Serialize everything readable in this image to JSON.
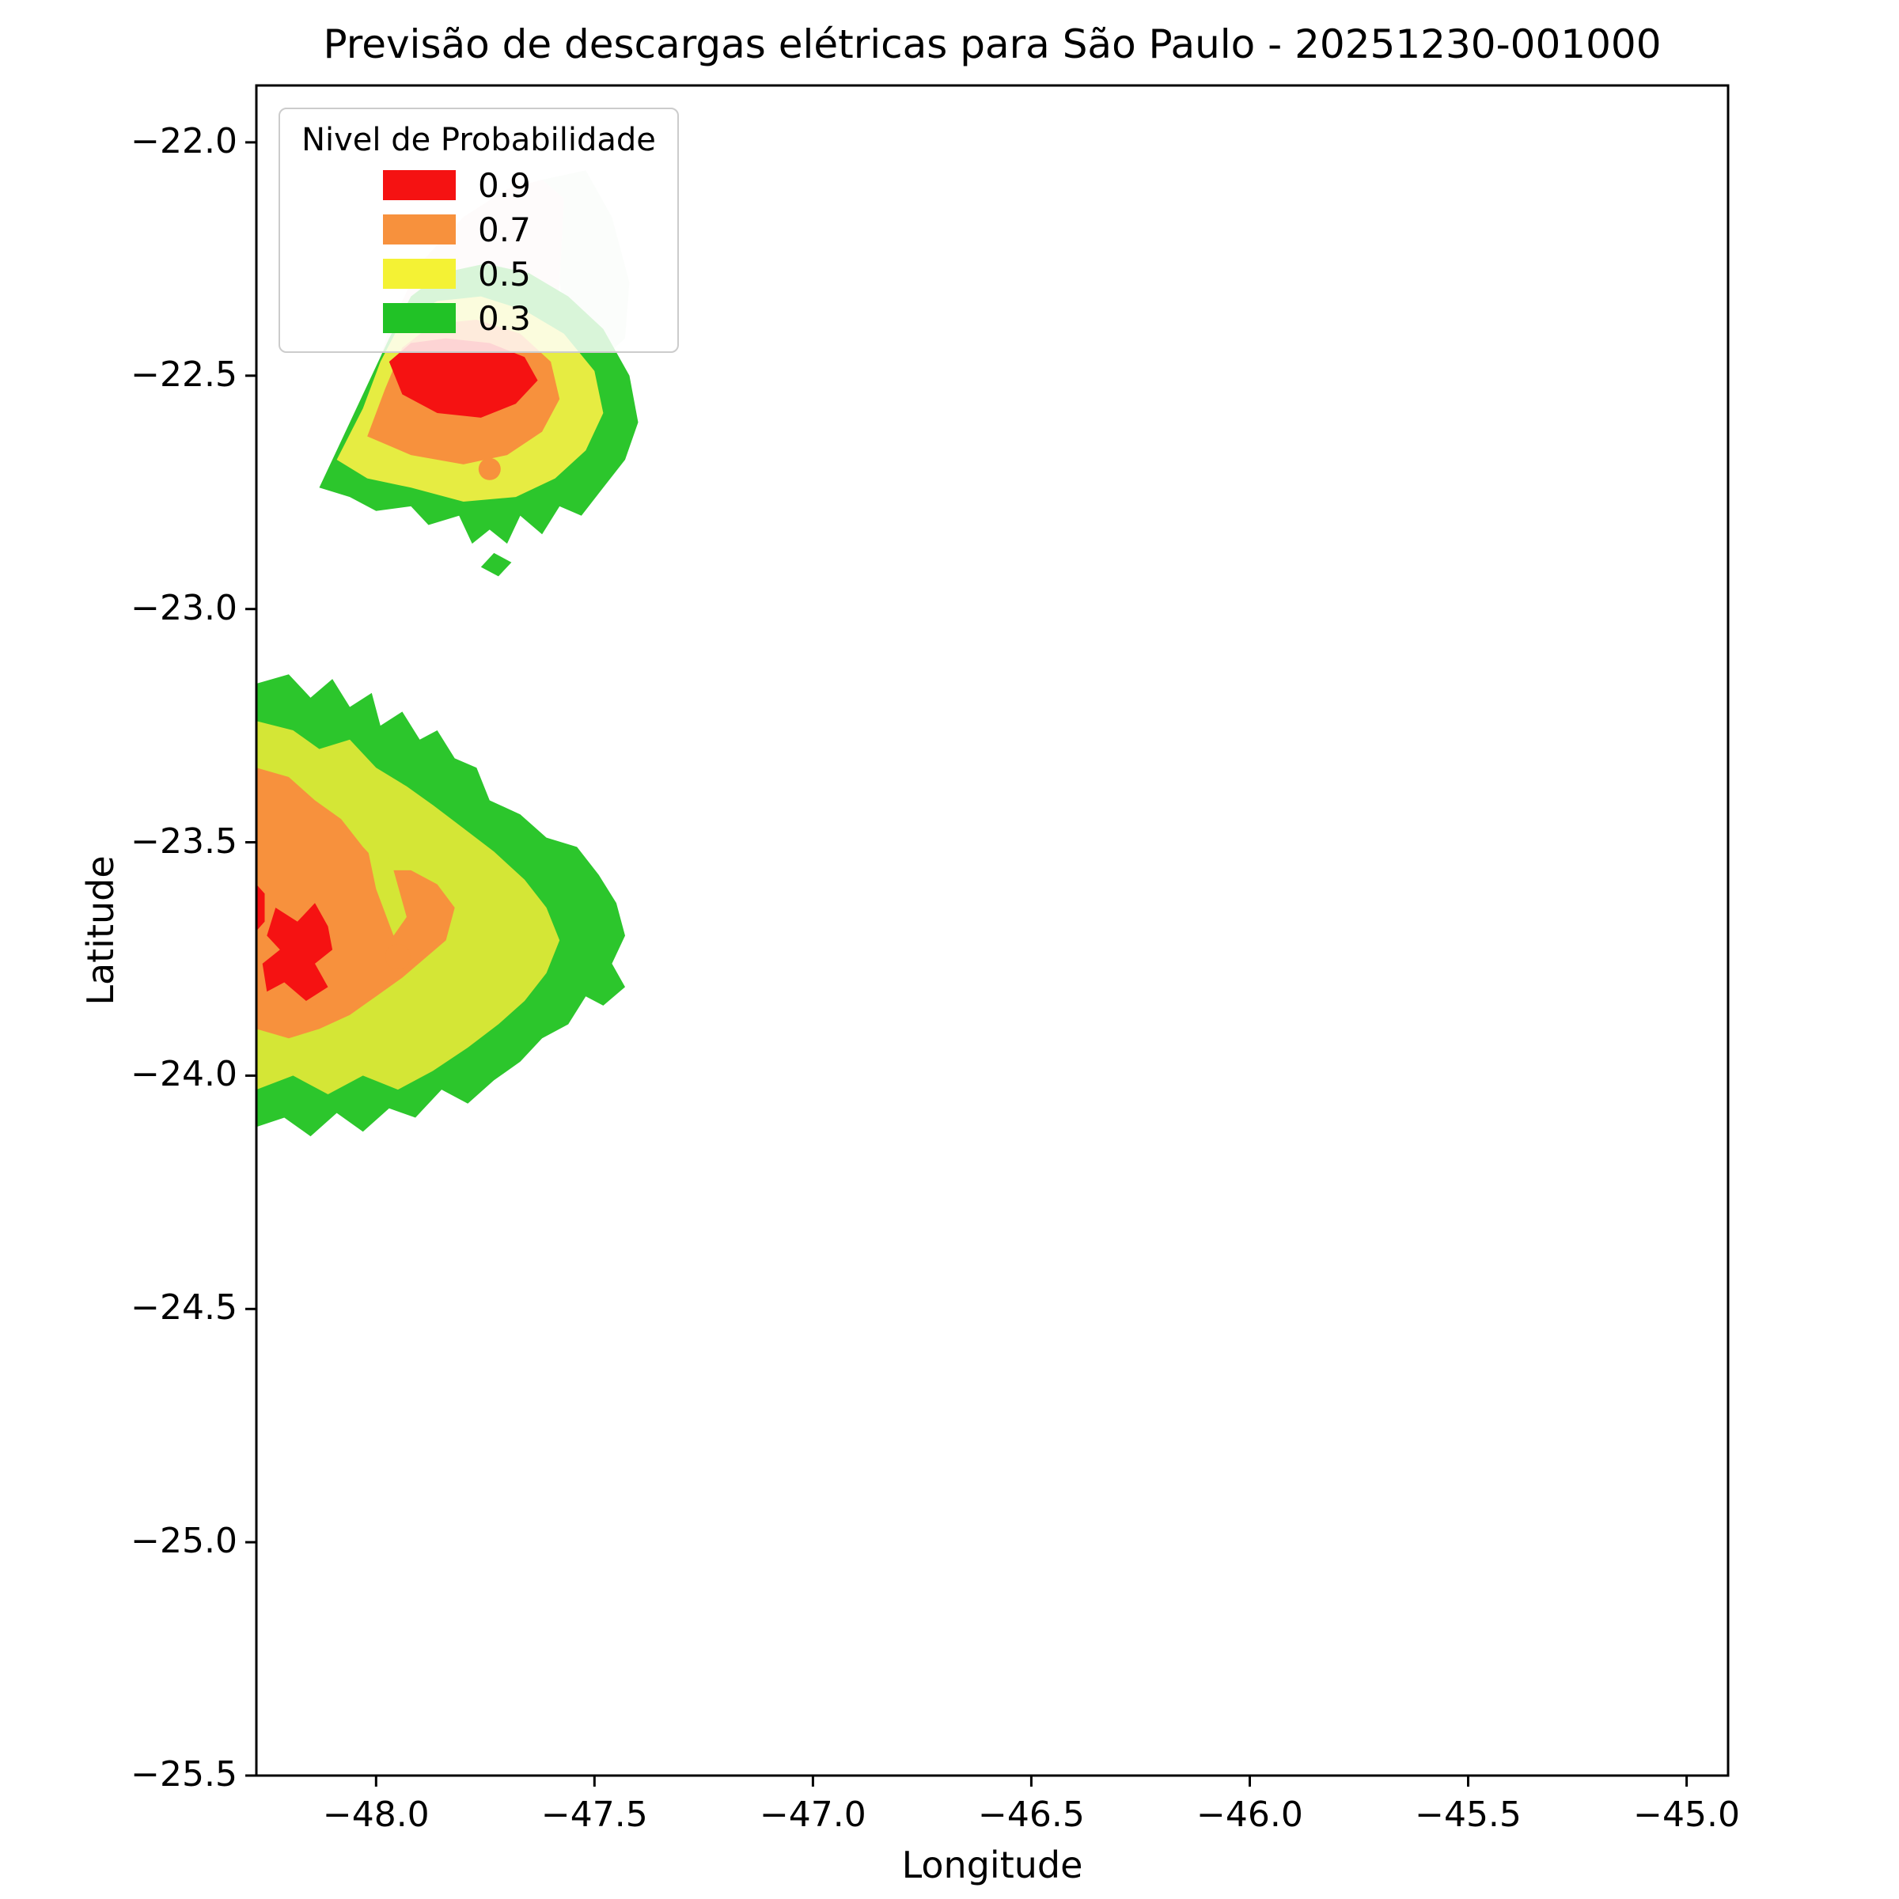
{
  "figure": {
    "background": "#ffffff"
  },
  "chart_data": {
    "type": "heatmap",
    "subtype": "filled-contour probability map",
    "title": "Previsão de descargas elétricas para São Paulo - 20251230-001000",
    "xlabel": "Longitude",
    "ylabel": "Latitude",
    "xlim": [
      -48.274,
      -44.905
    ],
    "ylim": [
      -25.5,
      -21.878
    ],
    "xticks": [
      -48.0,
      -47.5,
      -47.0,
      -46.5,
      -46.0,
      -45.5,
      -45.0
    ],
    "xtick_labels": [
      "−48.0",
      "−47.5",
      "−47.0",
      "−46.5",
      "−46.0",
      "−45.5",
      "−45.0"
    ],
    "yticks": [
      -22.0,
      -22.5,
      -23.0,
      -23.5,
      -24.0,
      -24.5,
      -25.0,
      -25.5
    ],
    "ytick_labels": [
      "−22.0",
      "−22.5",
      "−23.0",
      "−23.5",
      "−24.0",
      "−24.5",
      "−25.0",
      "−25.5"
    ],
    "grid": false,
    "levels": [
      0.3,
      0.5,
      0.7,
      0.9
    ],
    "legend": {
      "title": "Nivel de Probabilidade",
      "position": "upper left",
      "entries": [
        {
          "label": "0.9",
          "color": "#f51212"
        },
        {
          "label": "0.7",
          "color": "#f7913d"
        },
        {
          "label": "0.5",
          "color": "#f4f234"
        },
        {
          "label": "0.3",
          "color": "#21c226"
        }
      ]
    },
    "regions": [
      {
        "id": "north-halo-pink",
        "level": 0.1,
        "color": "#f7d9d4",
        "opacity": 0.6,
        "points": [
          [
            -48.03,
            -22.58
          ],
          [
            -47.97,
            -22.4
          ],
          [
            -47.9,
            -22.26
          ],
          [
            -47.8,
            -22.16
          ],
          [
            -47.7,
            -22.1
          ],
          [
            -47.62,
            -22.08
          ],
          [
            -47.57,
            -22.12
          ],
          [
            -47.58,
            -22.3
          ],
          [
            -47.6,
            -22.45
          ],
          [
            -47.64,
            -22.55
          ],
          [
            -47.8,
            -22.6
          ],
          [
            -47.95,
            -22.6
          ]
        ]
      },
      {
        "id": "north-halo-mint",
        "level": 0.1,
        "color": "#dcefda",
        "opacity": 0.6,
        "points": [
          [
            -47.62,
            -22.08
          ],
          [
            -47.52,
            -22.06
          ],
          [
            -47.46,
            -22.16
          ],
          [
            -47.42,
            -22.3
          ],
          [
            -47.43,
            -22.42
          ],
          [
            -47.5,
            -22.48
          ],
          [
            -47.56,
            -22.42
          ],
          [
            -47.58,
            -22.3
          ],
          [
            -47.57,
            -22.12
          ]
        ]
      },
      {
        "id": "north-green-0.3",
        "level": 0.3,
        "color": "#2cc62c",
        "opacity": 1,
        "points": [
          [
            -48.13,
            -22.74
          ],
          [
            -48.08,
            -22.64
          ],
          [
            -48.02,
            -22.52
          ],
          [
            -47.97,
            -22.42
          ],
          [
            -47.92,
            -22.33
          ],
          [
            -47.85,
            -22.28
          ],
          [
            -47.75,
            -22.26
          ],
          [
            -47.65,
            -22.28
          ],
          [
            -47.56,
            -22.33
          ],
          [
            -47.48,
            -22.4
          ],
          [
            -47.42,
            -22.5
          ],
          [
            -47.4,
            -22.6
          ],
          [
            -47.43,
            -22.68
          ],
          [
            -47.48,
            -22.74
          ],
          [
            -47.53,
            -22.8
          ],
          [
            -47.58,
            -22.78
          ],
          [
            -47.62,
            -22.84
          ],
          [
            -47.67,
            -22.8
          ],
          [
            -47.7,
            -22.86
          ],
          [
            -47.74,
            -22.83
          ],
          [
            -47.78,
            -22.86
          ],
          [
            -47.81,
            -22.8
          ],
          [
            -47.88,
            -22.82
          ],
          [
            -47.92,
            -22.78
          ],
          [
            -48.0,
            -22.79
          ],
          [
            -48.06,
            -22.76
          ]
        ]
      },
      {
        "id": "north-green-island",
        "level": 0.3,
        "color": "#2cc62c",
        "opacity": 1,
        "points": [
          [
            -47.73,
            -22.88
          ],
          [
            -47.69,
            -22.9
          ],
          [
            -47.72,
            -22.93
          ],
          [
            -47.76,
            -22.91
          ]
        ]
      },
      {
        "id": "north-yellow-0.5",
        "level": 0.5,
        "color": "#e6ec42",
        "opacity": 1,
        "points": [
          [
            -48.09,
            -22.68
          ],
          [
            -48.03,
            -22.57
          ],
          [
            -47.99,
            -22.47
          ],
          [
            -47.94,
            -22.38
          ],
          [
            -47.86,
            -22.34
          ],
          [
            -47.76,
            -22.33
          ],
          [
            -47.66,
            -22.36
          ],
          [
            -47.57,
            -22.41
          ],
          [
            -47.5,
            -22.49
          ],
          [
            -47.48,
            -22.58
          ],
          [
            -47.52,
            -22.66
          ],
          [
            -47.59,
            -22.72
          ],
          [
            -47.68,
            -22.76
          ],
          [
            -47.8,
            -22.77
          ],
          [
            -47.92,
            -22.74
          ],
          [
            -48.02,
            -22.72
          ]
        ]
      },
      {
        "id": "north-orange-0.7",
        "level": 0.7,
        "color": "#f7913d",
        "opacity": 1,
        "points": [
          [
            -48.02,
            -22.63
          ],
          [
            -47.98,
            -22.53
          ],
          [
            -47.94,
            -22.44
          ],
          [
            -47.87,
            -22.39
          ],
          [
            -47.77,
            -22.38
          ],
          [
            -47.67,
            -22.41
          ],
          [
            -47.6,
            -22.47
          ],
          [
            -47.58,
            -22.55
          ],
          [
            -47.62,
            -22.62
          ],
          [
            -47.7,
            -22.67
          ],
          [
            -47.8,
            -22.69
          ],
          [
            -47.92,
            -22.67
          ]
        ]
      },
      {
        "id": "north-red-0.9",
        "level": 0.9,
        "color": "#f51212",
        "opacity": 1,
        "points": [
          [
            -47.97,
            -22.47
          ],
          [
            -47.92,
            -22.43
          ],
          [
            -47.84,
            -22.42
          ],
          [
            -47.74,
            -22.43
          ],
          [
            -47.66,
            -22.46
          ],
          [
            -47.63,
            -22.51
          ],
          [
            -47.68,
            -22.56
          ],
          [
            -47.76,
            -22.59
          ],
          [
            -47.86,
            -22.58
          ],
          [
            -47.94,
            -22.54
          ]
        ]
      },
      {
        "id": "south-green-0.3",
        "level": 0.3,
        "color": "#2cc62c",
        "opacity": 1,
        "points": [
          [
            -48.274,
            -23.16
          ],
          [
            -48.2,
            -23.14
          ],
          [
            -48.15,
            -23.19
          ],
          [
            -48.1,
            -23.15
          ],
          [
            -48.06,
            -23.21
          ],
          [
            -48.01,
            -23.18
          ],
          [
            -47.99,
            -23.25
          ],
          [
            -47.94,
            -23.22
          ],
          [
            -47.9,
            -23.28
          ],
          [
            -47.86,
            -23.26
          ],
          [
            -47.82,
            -23.32
          ],
          [
            -47.77,
            -23.34
          ],
          [
            -47.74,
            -23.41
          ],
          [
            -47.67,
            -23.44
          ],
          [
            -47.61,
            -23.49
          ],
          [
            -47.54,
            -23.51
          ],
          [
            -47.49,
            -23.57
          ],
          [
            -47.45,
            -23.63
          ],
          [
            -47.43,
            -23.7
          ],
          [
            -47.46,
            -23.76
          ],
          [
            -47.43,
            -23.81
          ],
          [
            -47.48,
            -23.85
          ],
          [
            -47.52,
            -23.83
          ],
          [
            -47.56,
            -23.89
          ],
          [
            -47.62,
            -23.92
          ],
          [
            -47.67,
            -23.97
          ],
          [
            -47.73,
            -24.01
          ],
          [
            -47.79,
            -24.06
          ],
          [
            -47.85,
            -24.03
          ],
          [
            -47.91,
            -24.09
          ],
          [
            -47.97,
            -24.07
          ],
          [
            -48.03,
            -24.12
          ],
          [
            -48.09,
            -24.08
          ],
          [
            -48.15,
            -24.13
          ],
          [
            -48.21,
            -24.09
          ],
          [
            -48.274,
            -24.11
          ]
        ]
      },
      {
        "id": "south-yellowgreen-0.5",
        "level": 0.5,
        "color": "#d4e636",
        "opacity": 1,
        "points": [
          [
            -48.274,
            -23.24
          ],
          [
            -48.19,
            -23.26
          ],
          [
            -48.13,
            -23.3
          ],
          [
            -48.06,
            -23.28
          ],
          [
            -48.0,
            -23.34
          ],
          [
            -47.93,
            -23.38
          ],
          [
            -47.87,
            -23.42
          ],
          [
            -47.8,
            -23.47
          ],
          [
            -47.73,
            -23.52
          ],
          [
            -47.66,
            -23.58
          ],
          [
            -47.61,
            -23.64
          ],
          [
            -47.58,
            -23.71
          ],
          [
            -47.61,
            -23.78
          ],
          [
            -47.66,
            -23.84
          ],
          [
            -47.72,
            -23.89
          ],
          [
            -47.79,
            -23.94
          ],
          [
            -47.87,
            -23.99
          ],
          [
            -47.95,
            -24.03
          ],
          [
            -48.03,
            -24.0
          ],
          [
            -48.11,
            -24.04
          ],
          [
            -48.19,
            -24.0
          ],
          [
            -48.274,
            -24.03
          ]
        ]
      },
      {
        "id": "south-orange-0.7",
        "level": 0.7,
        "color": "#f7913d",
        "opacity": 1,
        "points": [
          [
            -48.274,
            -23.34
          ],
          [
            -48.2,
            -23.36
          ],
          [
            -48.14,
            -23.41
          ],
          [
            -48.08,
            -23.45
          ],
          [
            -48.03,
            -23.51
          ],
          [
            -47.98,
            -23.56
          ],
          [
            -47.92,
            -23.56
          ],
          [
            -47.86,
            -23.59
          ],
          [
            -47.82,
            -23.64
          ],
          [
            -47.84,
            -23.71
          ],
          [
            -47.89,
            -23.75
          ],
          [
            -47.94,
            -23.79
          ],
          [
            -48.0,
            -23.83
          ],
          [
            -48.06,
            -23.87
          ],
          [
            -48.13,
            -23.9
          ],
          [
            -48.2,
            -23.92
          ],
          [
            -48.274,
            -23.9
          ]
        ]
      },
      {
        "id": "south-yellowgreen-tongue",
        "level": 0.5,
        "color": "#d4e636",
        "opacity": 1,
        "points": [
          [
            -48.0,
            -23.47
          ],
          [
            -47.96,
            -23.56
          ],
          [
            -47.93,
            -23.66
          ],
          [
            -47.96,
            -23.7
          ],
          [
            -48.0,
            -23.6
          ],
          [
            -48.02,
            -23.51
          ]
        ]
      },
      {
        "id": "south-red-0.9",
        "level": 0.9,
        "color": "#f51212",
        "opacity": 1,
        "points": [
          [
            -48.25,
            -23.7
          ],
          [
            -48.23,
            -23.64
          ],
          [
            -48.18,
            -23.67
          ],
          [
            -48.14,
            -23.63
          ],
          [
            -48.11,
            -23.68
          ],
          [
            -48.1,
            -23.73
          ],
          [
            -48.14,
            -23.76
          ],
          [
            -48.11,
            -23.81
          ],
          [
            -48.16,
            -23.84
          ],
          [
            -48.21,
            -23.8
          ],
          [
            -48.25,
            -23.82
          ],
          [
            -48.26,
            -23.76
          ],
          [
            -48.22,
            -23.73
          ]
        ]
      },
      {
        "id": "south-red-edge-sliver",
        "level": 0.9,
        "color": "#f51212",
        "opacity": 1,
        "points": [
          [
            -48.274,
            -23.59
          ],
          [
            -48.255,
            -23.61
          ],
          [
            -48.255,
            -23.67
          ],
          [
            -48.274,
            -23.69
          ]
        ]
      }
    ],
    "markers": [
      {
        "id": "orange-dot-north",
        "color": "#f7913d",
        "center": [
          -47.74,
          -22.7
        ],
        "r": 14
      },
      {
        "id": "orange-dot-south",
        "color": "#f7913d",
        "center": [
          -47.95,
          -23.745
        ],
        "r": 16
      }
    ]
  }
}
